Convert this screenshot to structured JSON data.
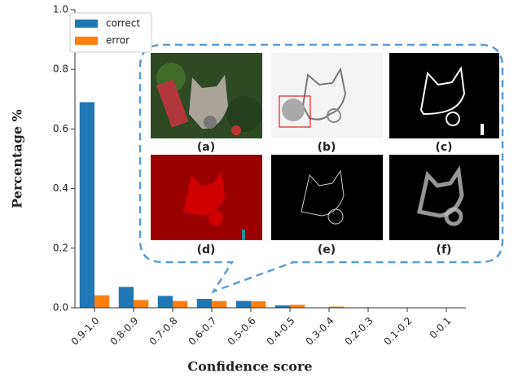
{
  "chart_data": {
    "type": "bar",
    "xlabel": "Confidence score",
    "ylabel": "Percentage %",
    "categories": [
      "0.9-1.0",
      "0.8-0.9",
      "0.7-0.8",
      "0.6-0.7",
      "0.5-0.6",
      "0.4-0.5",
      "0.3-0.4",
      "0.2-0.3",
      "0.1-0.2",
      "0-0.1"
    ],
    "series": [
      {
        "name": "correct",
        "color": "#1f77b4",
        "values": [
          0.69,
          0.07,
          0.04,
          0.03,
          0.023,
          0.008,
          0,
          0,
          0,
          0
        ]
      },
      {
        "name": "error",
        "color": "#ff7f0e",
        "values": [
          0.042,
          0.026,
          0.023,
          0.023,
          0.022,
          0.01,
          0.004,
          0,
          0,
          0
        ]
      }
    ],
    "ylim": [
      0,
      1
    ],
    "yticks": [
      {
        "value": 0,
        "label": "0.0"
      },
      0.2,
      0.4,
      0.6,
      0.8,
      {
        "value": 1,
        "label": "1.0"
      }
    ],
    "legend": "upper left",
    "inset_labels": [
      "(a)",
      "(b)",
      "(c)",
      "(d)",
      "(e)",
      "(f)"
    ]
  }
}
